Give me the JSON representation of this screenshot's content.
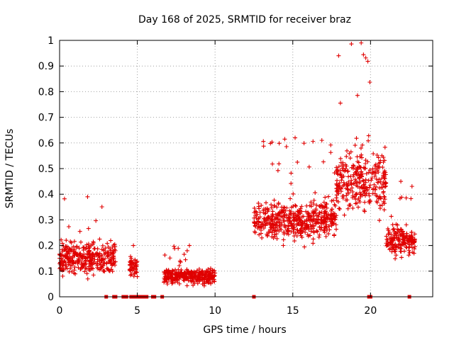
{
  "chart_data": {
    "type": "scatter",
    "title": "Day 168 of 2025, SRMTID for receiver braz",
    "xlabel": "GPS time / hours",
    "ylabel": "SRMTID / TECUs",
    "xlim": [
      0,
      24
    ],
    "ylim": [
      0,
      1
    ],
    "grid": true,
    "marker": "plus",
    "color": "#e00000",
    "x_ticks": [
      0,
      5,
      10,
      15,
      20
    ],
    "x_tick_labels": [
      "0",
      "5",
      "10",
      "15",
      "20"
    ],
    "y_ticks": [
      0,
      0.1,
      0.2,
      0.3,
      0.4,
      0.5,
      0.6,
      0.7,
      0.8,
      0.9,
      1
    ],
    "y_tick_labels": [
      "0",
      "0.1",
      "0.2",
      "0.3",
      "0.4",
      "0.5",
      "0.6",
      "0.7",
      "0.8",
      "0.9",
      "1"
    ],
    "series_profile": [
      {
        "x_range": [
          0.0,
          3.6
        ],
        "y_mean": 0.15,
        "y_spread": 0.1,
        "y_max": 0.39,
        "note": "scattered, peaks near 0.37 at 0.1h and 0.35 at 1.9h"
      },
      {
        "x_range": [
          4.5,
          5.0
        ],
        "y_mean": 0.12,
        "y_spread": 0.06,
        "y_max": 0.2
      },
      {
        "x_range": [
          6.7,
          10.0
        ],
        "y_mean": 0.08,
        "y_spread": 0.05,
        "y_max": 0.2,
        "note": "rising to ~0.15 near 9.5h"
      },
      {
        "x_range": [
          12.5,
          17.8
        ],
        "y_mean": 0.3,
        "y_spread": 0.12,
        "y_max": 0.62
      },
      {
        "x_range": [
          17.8,
          21.0
        ],
        "y_mean": 0.45,
        "y_spread": 0.2,
        "y_max": 0.99,
        "note": "maximum ~0.99 near 19.3h"
      },
      {
        "x_range": [
          21.0,
          22.9
        ],
        "y_mean": 0.22,
        "y_spread": 0.1,
        "y_max": 0.45
      }
    ],
    "zero_points_x": [
      3.0,
      3.5,
      3.6,
      4.1,
      4.3,
      4.6,
      4.7,
      4.9,
      5.1,
      5.3,
      5.4,
      5.6,
      6.0,
      6.1,
      6.6,
      12.5,
      19.9,
      20.0,
      22.5
    ]
  }
}
